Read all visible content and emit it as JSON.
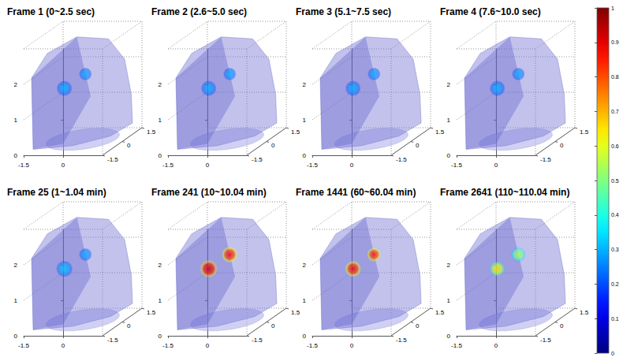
{
  "chart_data": [
    {
      "type": "volume3d",
      "title": "Frame 1 (0~2.5 sec)",
      "xlim": [
        -1.5,
        1.5
      ],
      "xticks": [
        -1.5,
        0
      ],
      "ylim": [
        -1.5,
        1.5
      ],
      "yticks": [
        -1.5,
        0,
        1.5
      ],
      "zlim": [
        0,
        3
      ],
      "zticks": [
        0,
        1,
        2
      ],
      "blobs": [
        {
          "x": -0.6,
          "y": -0.2,
          "z": 1.55,
          "size": 0.3,
          "value": 0.3
        },
        {
          "x": 0.0,
          "y": 0.2,
          "z": 1.85,
          "size": 0.25,
          "value": 0.3
        }
      ]
    },
    {
      "type": "volume3d",
      "title": "Frame 2 (2.6~5.0 sec)",
      "xlim": [
        -1.5,
        1.5
      ],
      "xticks": [
        -1.5,
        0
      ],
      "ylim": [
        -1.5,
        1.5
      ],
      "yticks": [
        -1.5,
        0,
        1.5
      ],
      "zlim": [
        0,
        3
      ],
      "zticks": [
        0,
        1,
        2
      ],
      "blobs": [
        {
          "x": -0.6,
          "y": -0.2,
          "z": 1.55,
          "size": 0.3,
          "value": 0.3
        },
        {
          "x": 0.0,
          "y": 0.2,
          "z": 1.85,
          "size": 0.25,
          "value": 0.3
        }
      ]
    },
    {
      "type": "volume3d",
      "title": "Frame 3 (5.1~7.5 sec)",
      "xlim": [
        -1.5,
        1.5
      ],
      "xticks": [
        -1.5,
        0
      ],
      "ylim": [
        -1.5,
        1.5
      ],
      "yticks": [
        -1.5,
        0,
        1.5
      ],
      "zlim": [
        0,
        3
      ],
      "zticks": [
        0,
        1,
        2
      ],
      "blobs": [
        {
          "x": -0.6,
          "y": -0.2,
          "z": 1.55,
          "size": 0.3,
          "value": 0.3
        },
        {
          "x": 0.0,
          "y": 0.2,
          "z": 1.85,
          "size": 0.25,
          "value": 0.3
        }
      ]
    },
    {
      "type": "volume3d",
      "title": "Frame 4 (7.6~10.0 sec)",
      "xlim": [
        -1.5,
        1.5
      ],
      "xticks": [
        -1.5,
        0
      ],
      "ylim": [
        -1.5,
        1.5
      ],
      "yticks": [
        -1.5,
        0,
        1.5
      ],
      "zlim": [
        0,
        3
      ],
      "zticks": [
        0,
        1,
        2
      ],
      "blobs": [
        {
          "x": -0.6,
          "y": -0.2,
          "z": 1.55,
          "size": 0.3,
          "value": 0.3
        },
        {
          "x": 0.0,
          "y": 0.2,
          "z": 1.85,
          "size": 0.25,
          "value": 0.3
        }
      ]
    },
    {
      "type": "volume3d",
      "title": "Frame 25 (1~1.04 min)",
      "xlim": [
        -1.5,
        1.5
      ],
      "xticks": [
        -1.5,
        0
      ],
      "ylim": [
        -1.5,
        1.5
      ],
      "yticks": [
        -1.5,
        0,
        1.5
      ],
      "zlim": [
        0,
        3
      ],
      "zticks": [
        0,
        1,
        2
      ],
      "blobs": [
        {
          "x": -0.6,
          "y": -0.2,
          "z": 1.55,
          "size": 0.32,
          "value": 0.32
        },
        {
          "x": 0.0,
          "y": 0.2,
          "z": 1.85,
          "size": 0.25,
          "value": 0.3
        }
      ]
    },
    {
      "type": "volume3d",
      "title": "Frame 241 (10~10.04 min)",
      "xlim": [
        -1.5,
        1.5
      ],
      "xticks": [
        -1.5,
        0
      ],
      "ylim": [
        -1.5,
        1.5
      ],
      "yticks": [
        -1.5,
        0,
        1.5
      ],
      "zlim": [
        0,
        3
      ],
      "zticks": [
        0,
        1,
        2
      ],
      "blobs": [
        {
          "x": -0.6,
          "y": -0.2,
          "z": 1.55,
          "size": 0.35,
          "value": 0.95
        },
        {
          "x": 0.0,
          "y": 0.2,
          "z": 1.85,
          "size": 0.32,
          "value": 0.9
        }
      ]
    },
    {
      "type": "volume3d",
      "title": "Frame 1441 (60~60.04 min)",
      "xlim": [
        -1.5,
        1.5
      ],
      "xticks": [
        -1.5,
        0
      ],
      "ylim": [
        -1.5,
        1.5
      ],
      "yticks": [
        -1.5,
        0,
        1.5
      ],
      "zlim": [
        0,
        3
      ],
      "zticks": [
        0,
        1,
        2
      ],
      "blobs": [
        {
          "x": -0.6,
          "y": -0.2,
          "z": 1.55,
          "size": 0.32,
          "value": 0.9
        },
        {
          "x": 0.0,
          "y": 0.2,
          "z": 1.85,
          "size": 0.28,
          "value": 0.88
        }
      ]
    },
    {
      "type": "volume3d",
      "title": "Frame 2641 (110~110.04 min)",
      "xlim": [
        -1.5,
        1.5
      ],
      "xticks": [
        -1.5,
        0
      ],
      "ylim": [
        -1.5,
        1.5
      ],
      "yticks": [
        -1.5,
        0,
        1.5
      ],
      "zlim": [
        0,
        3
      ],
      "zticks": [
        0,
        1,
        2
      ],
      "blobs": [
        {
          "x": -0.6,
          "y": -0.2,
          "z": 1.55,
          "size": 0.3,
          "value": 0.65
        },
        {
          "x": 0.0,
          "y": 0.2,
          "z": 1.85,
          "size": 0.28,
          "value": 0.55
        }
      ]
    },
    {
      "type": "colorbar",
      "ylim": [
        0,
        1
      ],
      "yticks": [
        0,
        0.1,
        0.2,
        0.3,
        0.4,
        0.5,
        0.6,
        0.7,
        0.8,
        0.9,
        1
      ]
    }
  ]
}
